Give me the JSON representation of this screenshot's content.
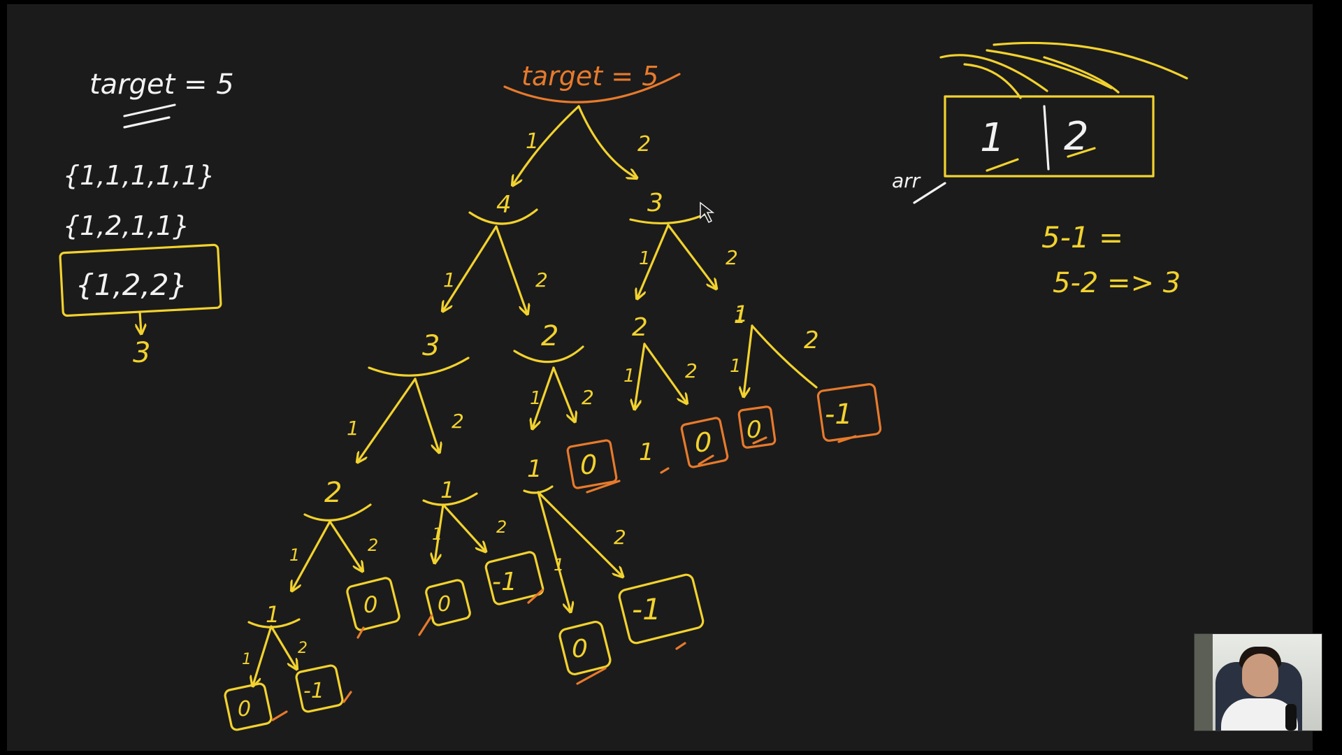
{
  "colors": {
    "yellow": "#f2d22e",
    "orange": "#e77a2c",
    "white": "#f2f2f2",
    "board": "#1b1b1b"
  },
  "left_notes": {
    "target": "target = 5",
    "combos": [
      "{1,1,1,1,1}",
      "{1,2,1,1}",
      "{1,2,2}"
    ],
    "boxed_result": "3"
  },
  "tree": {
    "root": "target = 5",
    "edge_1": "1",
    "edge_2": "2",
    "nodes": {
      "n4": "4",
      "n3": "3",
      "n3a": "3",
      "n2a": "2",
      "n2b": "2",
      "n1a": "1",
      "n2c": "2",
      "n1b": "1",
      "n1c": "1",
      "n0a": "0",
      "n1d": "1",
      "n0b": "0",
      "n0c": "0",
      "nm1a": "-1",
      "n1e": "1",
      "n0d": "0",
      "n0e": "0",
      "nm1b": "-1",
      "n0f": "0",
      "nm1c": "-1",
      "n0g": "0",
      "nm1d": "-1"
    }
  },
  "right_notes": {
    "arr_label": "arr",
    "arr_values": [
      "1",
      "2"
    ],
    "eq1": "5-1 =",
    "eq2": "5-2 => 3"
  },
  "webcam": {
    "icon": "presenter-webcam"
  }
}
